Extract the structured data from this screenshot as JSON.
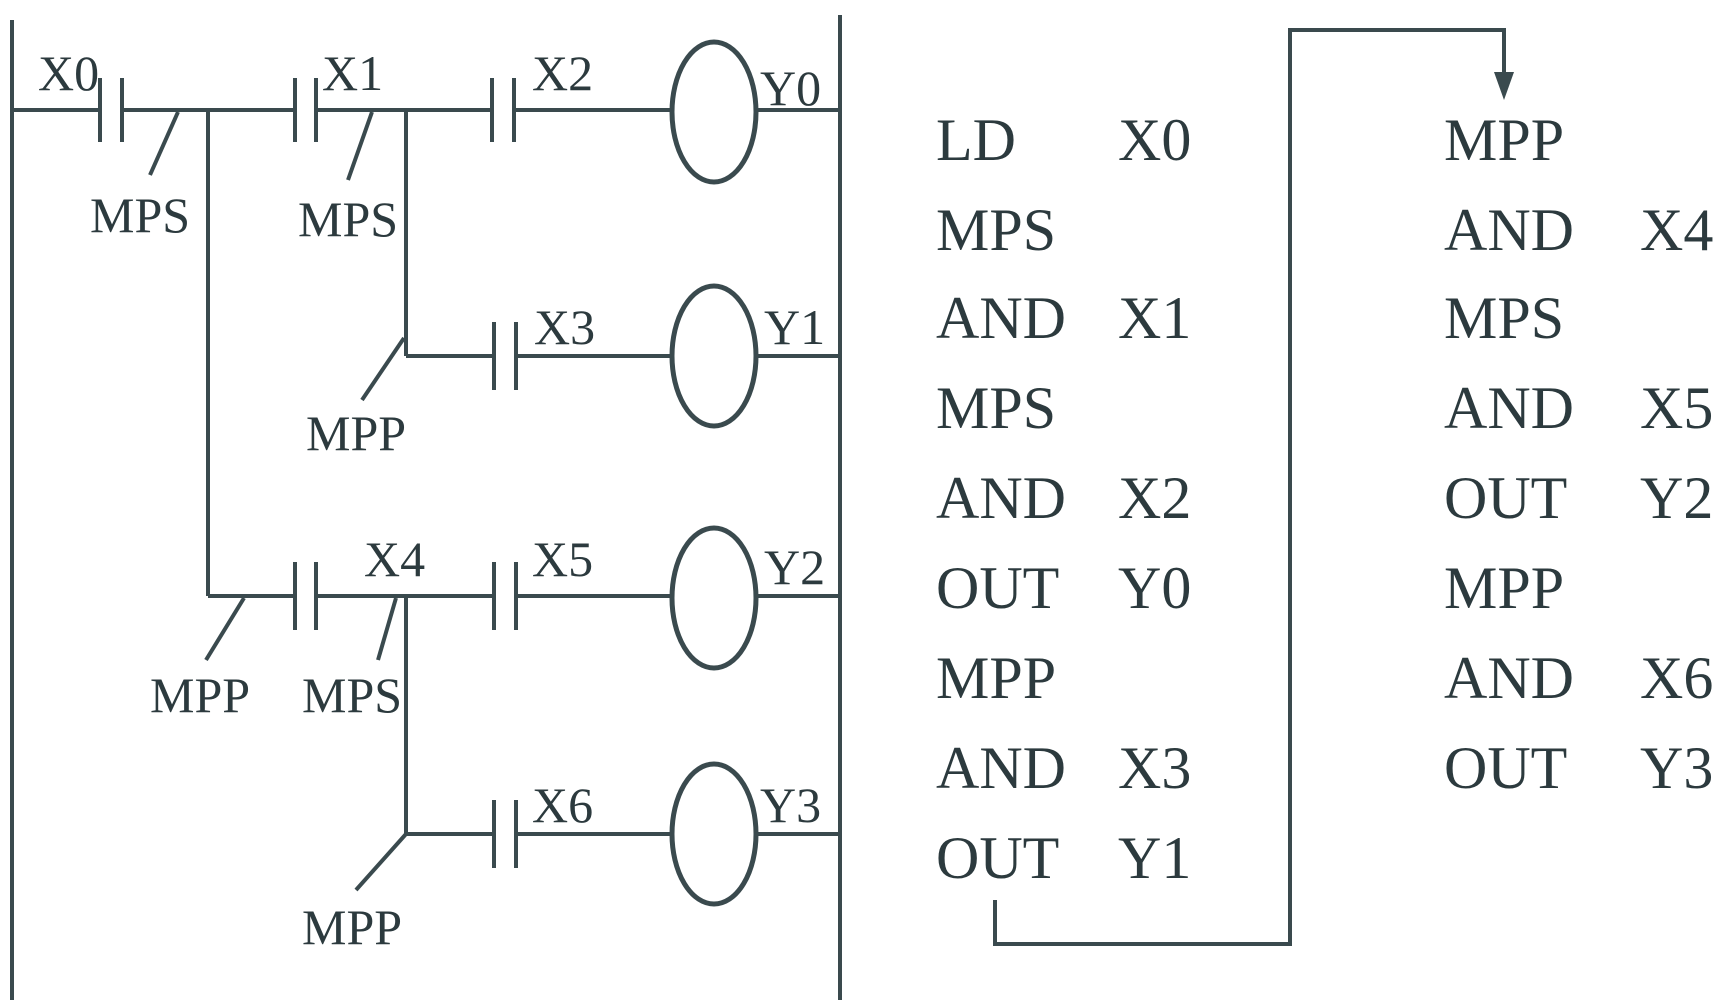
{
  "ladder": {
    "contacts": [
      "X0",
      "X1",
      "X2",
      "X3",
      "X4",
      "X5",
      "X6"
    ],
    "coils": [
      "Y0",
      "Y1",
      "Y2",
      "Y3"
    ],
    "stack_labels": [
      "MPS",
      "MPS",
      "MPP",
      "MPP",
      "MPS",
      "MPP"
    ]
  },
  "program_left": [
    {
      "op": "LD",
      "arg": "X0"
    },
    {
      "op": "MPS",
      "arg": ""
    },
    {
      "op": "AND",
      "arg": "X1"
    },
    {
      "op": "MPS",
      "arg": ""
    },
    {
      "op": "AND",
      "arg": "X2"
    },
    {
      "op": "OUT",
      "arg": "Y0"
    },
    {
      "op": "MPP",
      "arg": ""
    },
    {
      "op": "AND",
      "arg": "X3"
    },
    {
      "op": "OUT",
      "arg": "Y1"
    }
  ],
  "program_right": [
    {
      "op": "MPP",
      "arg": ""
    },
    {
      "op": "AND",
      "arg": "X4"
    },
    {
      "op": "MPS",
      "arg": ""
    },
    {
      "op": "AND",
      "arg": "X5"
    },
    {
      "op": "OUT",
      "arg": "Y2"
    },
    {
      "op": "MPP",
      "arg": ""
    },
    {
      "op": "AND",
      "arg": "X6"
    },
    {
      "op": "OUT",
      "arg": "Y3"
    }
  ]
}
